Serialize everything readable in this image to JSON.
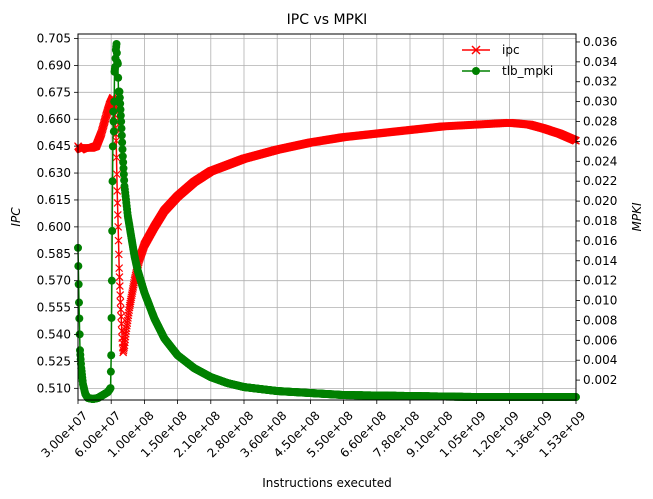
{
  "chart_data": {
    "type": "line",
    "title": "IPC vs MPKI",
    "xlabel": "Instructions executed",
    "ylabel_left": "IPC",
    "ylabel_right": "MPKI",
    "x_tick_labels": [
      "3.00e+07",
      "6.00e+07",
      "1.00e+08",
      "1.50e+08",
      "2.10e+08",
      "2.80e+08",
      "3.60e+08",
      "4.50e+08",
      "5.50e+08",
      "6.60e+08",
      "7.80e+08",
      "9.10e+08",
      "1.05e+09",
      "1.20e+09",
      "1.36e+09",
      "1.53e+09"
    ],
    "ylim_left": [
      0.5035,
      0.7075
    ],
    "y_ticks_left": [
      "0.510",
      "0.525",
      "0.540",
      "0.555",
      "0.570",
      "0.585",
      "0.600",
      "0.615",
      "0.630",
      "0.645",
      "0.660",
      "0.675",
      "0.690",
      "0.705"
    ],
    "ylim_right": [
      0.0,
      0.0368
    ],
    "y_ticks_right": [
      "0.002",
      "0.004",
      "0.006",
      "0.008",
      "0.010",
      "0.012",
      "0.014",
      "0.016",
      "0.018",
      "0.020",
      "0.022",
      "0.024",
      "0.026",
      "0.028",
      "0.030",
      "0.032",
      "0.034",
      "0.036"
    ],
    "grid": true,
    "legend_position": "top-right",
    "x_axis_note": "tick labels are evenly spaced (index positions)",
    "series": [
      {
        "name": "ipc",
        "axis": "left",
        "color": "#ff0000",
        "marker": "x",
        "points": [
          [
            0.0,
            0.645
          ],
          [
            0.08,
            0.643
          ],
          [
            0.2,
            0.644
          ],
          [
            0.4,
            0.644
          ],
          [
            0.55,
            0.645
          ],
          [
            0.7,
            0.652
          ],
          [
            0.85,
            0.662
          ],
          [
            0.95,
            0.668
          ],
          [
            1.0,
            0.67
          ],
          [
            1.05,
            0.672
          ],
          [
            1.1,
            0.666
          ],
          [
            1.15,
            0.648
          ],
          [
            1.18,
            0.62
          ],
          [
            1.21,
            0.6
          ],
          [
            1.24,
            0.577
          ],
          [
            1.27,
            0.562
          ],
          [
            1.3,
            0.55
          ],
          [
            1.33,
            0.538
          ],
          [
            1.36,
            0.53
          ],
          [
            1.4,
            0.534
          ],
          [
            1.45,
            0.542
          ],
          [
            1.55,
            0.555
          ],
          [
            1.7,
            0.57
          ],
          [
            1.85,
            0.582
          ],
          [
            2.0,
            0.59
          ],
          [
            2.3,
            0.6
          ],
          [
            2.6,
            0.609
          ],
          [
            3.0,
            0.617
          ],
          [
            3.5,
            0.625
          ],
          [
            4.0,
            0.631
          ],
          [
            5.0,
            0.638
          ],
          [
            6.0,
            0.643
          ],
          [
            7.0,
            0.647
          ],
          [
            8.0,
            0.65
          ],
          [
            9.0,
            0.652
          ],
          [
            10.0,
            0.654
          ],
          [
            11.0,
            0.656
          ],
          [
            12.0,
            0.657
          ],
          [
            13.0,
            0.658
          ],
          [
            13.6,
            0.657
          ],
          [
            14.0,
            0.655
          ],
          [
            14.5,
            0.652
          ],
          [
            15.0,
            0.648
          ]
        ]
      },
      {
        "name": "tlb_mpki",
        "axis": "right",
        "color": "#008000",
        "marker": "o",
        "points": [
          [
            0.0,
            0.0153
          ],
          [
            0.03,
            0.0098
          ],
          [
            0.06,
            0.005
          ],
          [
            0.1,
            0.0032
          ],
          [
            0.15,
            0.0016
          ],
          [
            0.22,
            0.0006
          ],
          [
            0.3,
            0.0002
          ],
          [
            0.45,
            0.0001
          ],
          [
            0.6,
            0.0002
          ],
          [
            0.75,
            0.0005
          ],
          [
            0.9,
            0.0008
          ],
          [
            0.98,
            0.0012
          ],
          [
            1.0,
            0.0045
          ],
          [
            1.02,
            0.012
          ],
          [
            1.04,
            0.022
          ],
          [
            1.06,
            0.029
          ],
          [
            1.08,
            0.027
          ],
          [
            1.1,
            0.033
          ],
          [
            1.12,
            0.0335
          ],
          [
            1.14,
            0.0352
          ],
          [
            1.16,
            0.0358
          ],
          [
            1.18,
            0.034
          ],
          [
            1.2,
            0.0338
          ],
          [
            1.22,
            0.031
          ],
          [
            1.25,
            0.031
          ],
          [
            1.3,
            0.028
          ],
          [
            1.35,
            0.0245
          ],
          [
            1.4,
            0.0215
          ],
          [
            1.5,
            0.0185
          ],
          [
            1.6,
            0.0165
          ],
          [
            1.7,
            0.0145
          ],
          [
            1.8,
            0.013
          ],
          [
            2.0,
            0.0108
          ],
          [
            2.3,
            0.0082
          ],
          [
            2.6,
            0.0062
          ],
          [
            3.0,
            0.0045
          ],
          [
            3.5,
            0.0032
          ],
          [
            4.0,
            0.0023
          ],
          [
            4.5,
            0.0017
          ],
          [
            5.0,
            0.0013
          ],
          [
            6.0,
            0.0009
          ],
          [
            7.0,
            0.0007
          ],
          [
            8.0,
            0.0005
          ],
          [
            10.0,
            0.0004
          ],
          [
            12.0,
            0.0003
          ],
          [
            15.0,
            0.0003
          ]
        ]
      }
    ]
  }
}
